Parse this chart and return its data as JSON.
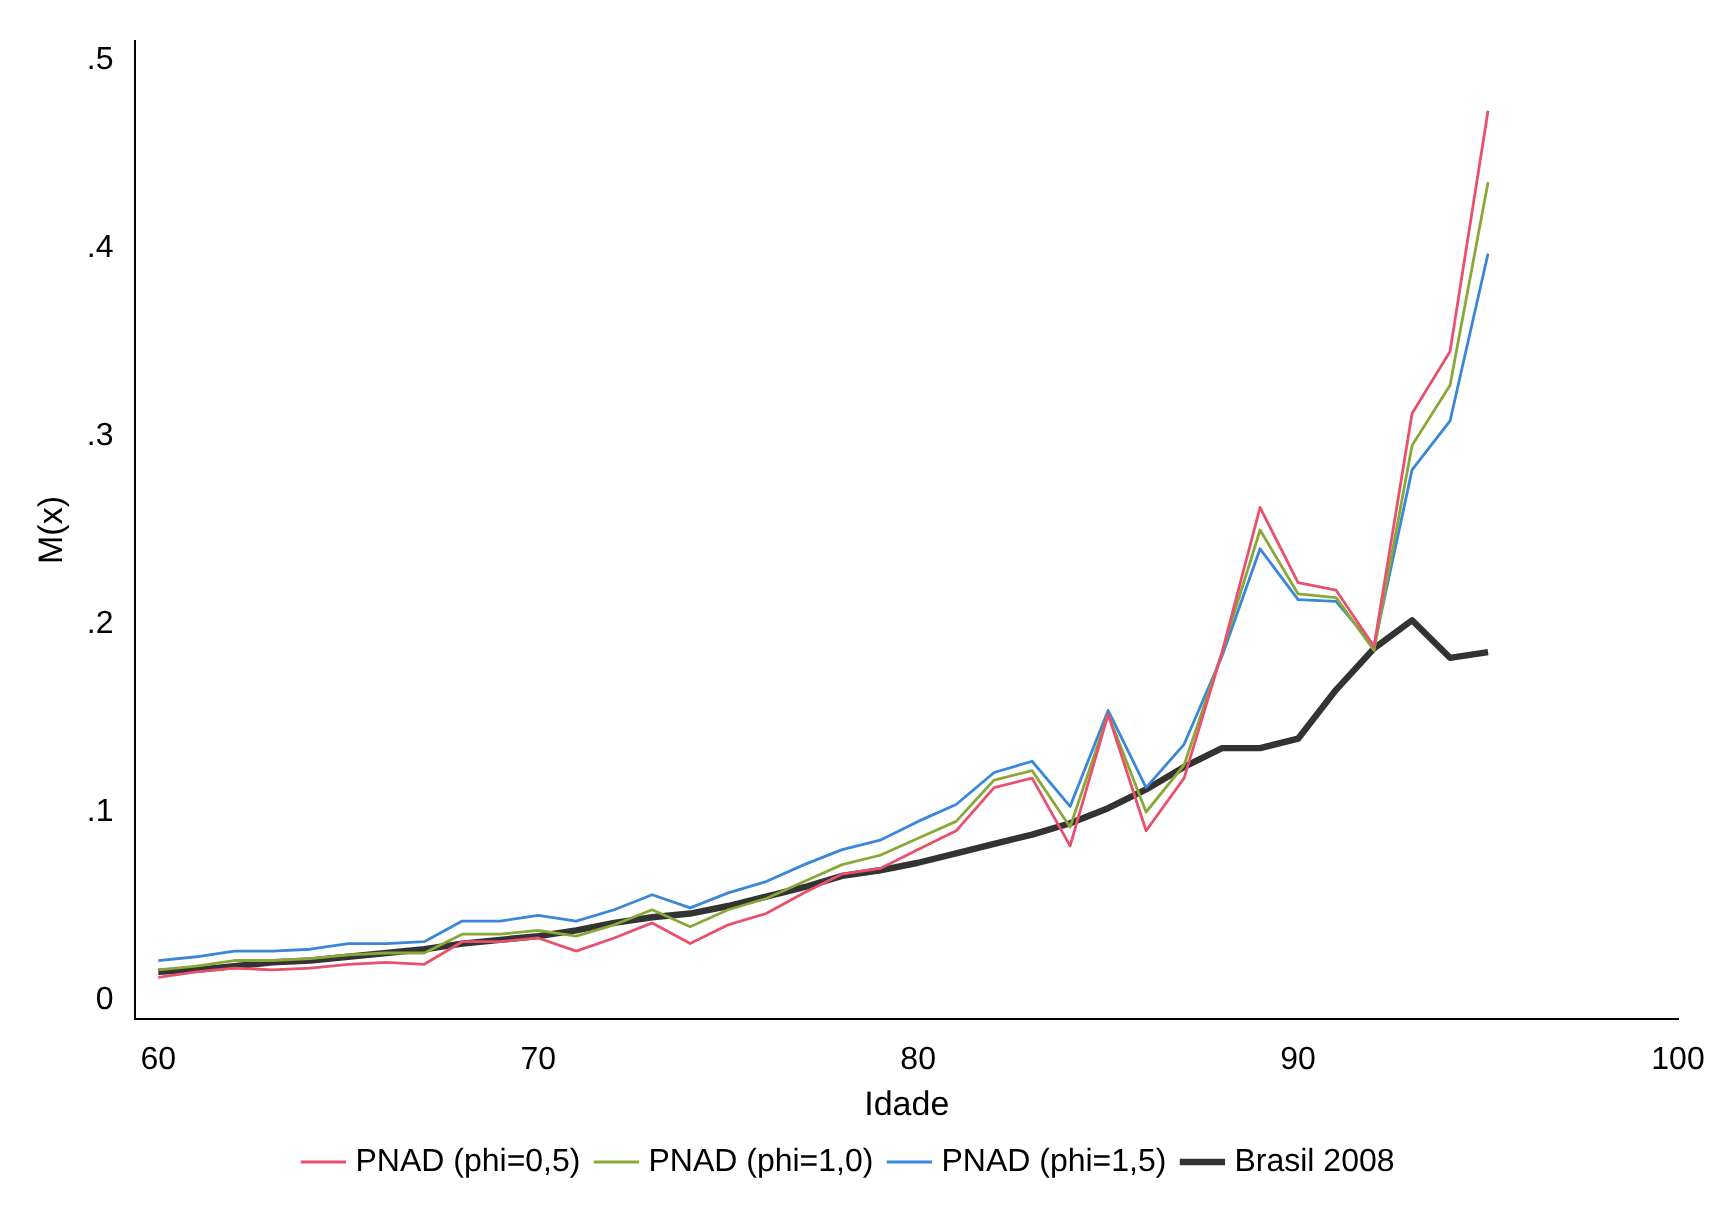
{
  "chart_data": {
    "type": "line",
    "xlabel": "Idade",
    "ylabel": "M(x)",
    "x": [
      60,
      61,
      62,
      63,
      64,
      65,
      66,
      67,
      68,
      69,
      70,
      71,
      72,
      73,
      74,
      75,
      76,
      77,
      78,
      79,
      80,
      81,
      82,
      83,
      84,
      85,
      86,
      87,
      88,
      89,
      90,
      91,
      92,
      93,
      94,
      95
    ],
    "series": [
      {
        "name": "PNAD (phi=0,5)",
        "color": "#e8506e",
        "values": [
          0.012,
          0.015,
          0.017,
          0.016,
          0.017,
          0.019,
          0.02,
          0.019,
          0.031,
          0.031,
          0.033,
          0.026,
          0.033,
          0.041,
          0.03,
          0.04,
          0.046,
          0.057,
          0.067,
          0.07,
          0.08,
          0.09,
          0.113,
          0.118,
          0.082,
          0.152,
          0.09,
          0.118,
          0.185,
          0.262,
          0.222,
          0.218,
          0.188,
          0.312,
          0.345,
          0.473
        ]
      },
      {
        "name": "PNAD (phi=1,0)",
        "color": "#8aa838",
        "values": [
          0.016,
          0.018,
          0.021,
          0.021,
          0.022,
          0.024,
          0.025,
          0.025,
          0.035,
          0.035,
          0.037,
          0.034,
          0.04,
          0.048,
          0.039,
          0.048,
          0.054,
          0.063,
          0.072,
          0.077,
          0.086,
          0.095,
          0.117,
          0.122,
          0.092,
          0.152,
          0.1,
          0.125,
          0.185,
          0.25,
          0.216,
          0.214,
          0.186,
          0.295,
          0.327,
          0.435
        ]
      },
      {
        "name": "PNAD (phi=1,5)",
        "color": "#3a86d8",
        "values": [
          0.021,
          0.023,
          0.026,
          0.026,
          0.027,
          0.03,
          0.03,
          0.031,
          0.042,
          0.042,
          0.045,
          0.042,
          0.048,
          0.056,
          0.049,
          0.057,
          0.063,
          0.072,
          0.08,
          0.085,
          0.095,
          0.104,
          0.121,
          0.127,
          0.103,
          0.154,
          0.113,
          0.136,
          0.183,
          0.24,
          0.213,
          0.212,
          0.188,
          0.282,
          0.308,
          0.397
        ]
      },
      {
        "name": "Brasil 2008",
        "color": "#333333",
        "values": [
          0.015,
          0.016,
          0.018,
          0.02,
          0.021,
          0.023,
          0.025,
          0.027,
          0.03,
          0.032,
          0.034,
          0.037,
          0.041,
          0.044,
          0.046,
          0.05,
          0.055,
          0.06,
          0.066,
          0.069,
          0.073,
          0.078,
          0.083,
          0.088,
          0.094,
          0.102,
          0.112,
          0.124,
          0.134,
          0.134,
          0.139,
          0.165,
          0.187,
          0.202,
          0.182,
          0.185
        ]
      }
    ],
    "xlim": [
      59.4,
      100
    ],
    "xticks": [
      60,
      70,
      80,
      90,
      100
    ],
    "ylim": [
      -0.01,
      0.51
    ],
    "yticks": [
      0,
      {
        "value": 0.1,
        "label": ".1"
      },
      {
        "value": 0.2,
        "label": ".2"
      },
      {
        "value": 0.3,
        "label": ".3"
      },
      {
        "value": 0.4,
        "label": ".4"
      },
      {
        "value": 0.5,
        "label": ".5"
      }
    ],
    "grid": false,
    "legend": "bottom",
    "marker": "none",
    "line_style": "solid"
  }
}
